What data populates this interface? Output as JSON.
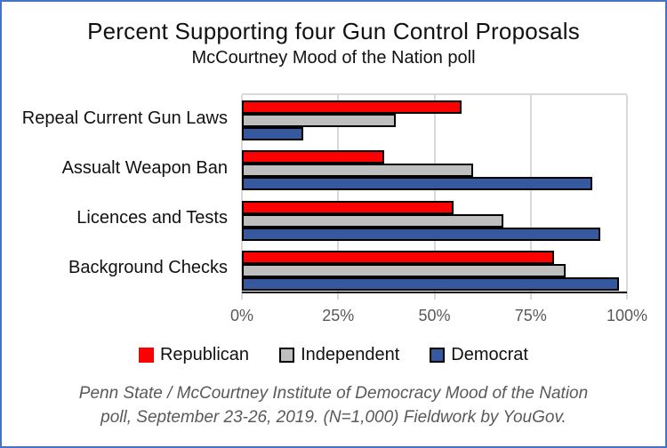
{
  "window": {
    "background": "#FFFFFF",
    "border_color": "#4472C4"
  },
  "chart_data": {
    "type": "bar",
    "orientation": "horizontal",
    "title": "Percent Supporting four Gun Control Proposals",
    "subtitle": "McCourtney Mood of the Nation poll",
    "categories": [
      "Repeal Current Gun Laws",
      "Assualt Weapon Ban",
      "Licences and Tests",
      "Background Checks"
    ],
    "series": [
      {
        "name": "Republican",
        "color": "#FF0000",
        "swatch_border": false,
        "values": [
          57,
          37,
          55,
          81
        ]
      },
      {
        "name": "Independent",
        "color": "#BFBFBF",
        "swatch_border": true,
        "values": [
          40,
          60,
          68,
          84
        ]
      },
      {
        "name": "Democrat",
        "color": "#35589E",
        "swatch_border": true,
        "values": [
          16,
          91,
          93,
          98
        ]
      }
    ],
    "xlim": [
      0,
      100
    ],
    "x_tick_values": [
      0,
      25,
      50,
      75,
      100
    ],
    "x_tick_labels": [
      "0%",
      "25%",
      "50%",
      "75%",
      "100%"
    ],
    "grid": "vertical-major",
    "gridline_color": "#D9D9D9",
    "bar_border_color": "#000000",
    "axis_color": "#000000",
    "tick_label_color": "#595959",
    "legend_position": "bottom"
  },
  "footer": {
    "line1": "Penn State / McCourtney Institute of Democracy Mood of the Nation",
    "line2": "poll, September 23-26, 2019.  (N=1,000) Fieldwork by YouGov."
  }
}
